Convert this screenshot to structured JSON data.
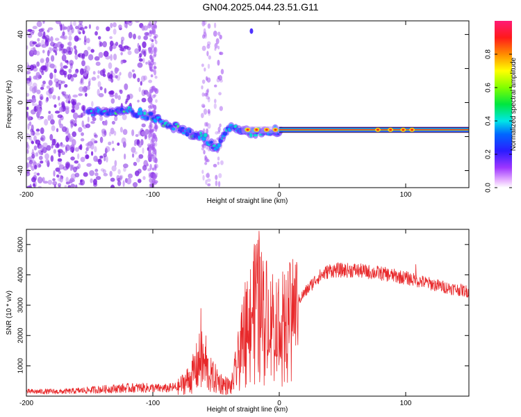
{
  "title": "GN04.2025.044.23.51.G11",
  "chart_data": [
    {
      "type": "heatmap",
      "xlabel": "Height of straight line (km)",
      "ylabel": "Frequency (Hz)",
      "xlim": [
        -200,
        150
      ],
      "ylim": [
        -50,
        48
      ],
      "xticks": [
        -200,
        -100,
        0,
        100
      ],
      "yticks": [
        -40,
        -20,
        0,
        20,
        40
      ],
      "colorbar": {
        "label": "Normalized spectral amplitude",
        "range": [
          0,
          1
        ],
        "ticks": [
          "0.0",
          "0.2",
          "0.4",
          "0.6",
          "0.8"
        ]
      },
      "ridge": [
        {
          "x": -150,
          "y": -5
        },
        {
          "x": -140,
          "y": -6
        },
        {
          "x": -130,
          "y": -6
        },
        {
          "x": -120,
          "y": -5
        },
        {
          "x": -110,
          "y": -6
        },
        {
          "x": -100,
          "y": -9
        },
        {
          "x": -90,
          "y": -12
        },
        {
          "x": -80,
          "y": -15
        },
        {
          "x": -70,
          "y": -18
        },
        {
          "x": -60,
          "y": -20
        },
        {
          "x": -50,
          "y": -27
        },
        {
          "x": -40,
          "y": -14
        },
        {
          "x": -30,
          "y": -16
        },
        {
          "x": -20,
          "y": -18
        },
        {
          "x": -10,
          "y": -17
        },
        {
          "x": 0,
          "y": -16
        },
        {
          "x": 50,
          "y": -16
        },
        {
          "x": 100,
          "y": -16
        },
        {
          "x": 150,
          "y": -16
        }
      ]
    },
    {
      "type": "line",
      "xlabel": "Height of straight line (km)",
      "ylabel": "SNR (10 * v/v)",
      "xlim": [
        -200,
        150
      ],
      "ylim": [
        0,
        5500
      ],
      "xticks": [
        -200,
        -100,
        0,
        100
      ],
      "yticks": [
        1000,
        2000,
        3000,
        4000,
        5000
      ],
      "series_color": "#e8282a",
      "envelope": [
        {
          "x": -200,
          "y": 150
        },
        {
          "x": -170,
          "y": 150
        },
        {
          "x": -150,
          "y": 200
        },
        {
          "x": -130,
          "y": 250
        },
        {
          "x": -110,
          "y": 280
        },
        {
          "x": -90,
          "y": 250
        },
        {
          "x": -80,
          "y": 300
        },
        {
          "x": -70,
          "y": 600
        },
        {
          "x": -62,
          "y": 1200
        },
        {
          "x": -55,
          "y": 700
        },
        {
          "x": -45,
          "y": 400
        },
        {
          "x": -38,
          "y": 300
        },
        {
          "x": -32,
          "y": 1200
        },
        {
          "x": -28,
          "y": 2400
        },
        {
          "x": -25,
          "y": 3000
        },
        {
          "x": -22,
          "y": 2800
        },
        {
          "x": -18,
          "y": 3600
        },
        {
          "x": -14,
          "y": 3200
        },
        {
          "x": -10,
          "y": 3000
        },
        {
          "x": -5,
          "y": 2800
        },
        {
          "x": 0,
          "y": 2700
        },
        {
          "x": 10,
          "y": 2900
        },
        {
          "x": 20,
          "y": 3400
        },
        {
          "x": 30,
          "y": 3900
        },
        {
          "x": 40,
          "y": 4150
        },
        {
          "x": 60,
          "y": 4150
        },
        {
          "x": 80,
          "y": 4050
        },
        {
          "x": 100,
          "y": 3900
        },
        {
          "x": 115,
          "y": 3750
        },
        {
          "x": 130,
          "y": 3600
        },
        {
          "x": 150,
          "y": 3450
        }
      ],
      "spikes": [
        {
          "x": -62,
          "y": 2900
        },
        {
          "x": -58,
          "y": 2000
        },
        {
          "x": -16,
          "y": 5450
        },
        {
          "x": -13,
          "y": 3800
        },
        {
          "x": 108,
          "y": 4350
        }
      ]
    }
  ]
}
